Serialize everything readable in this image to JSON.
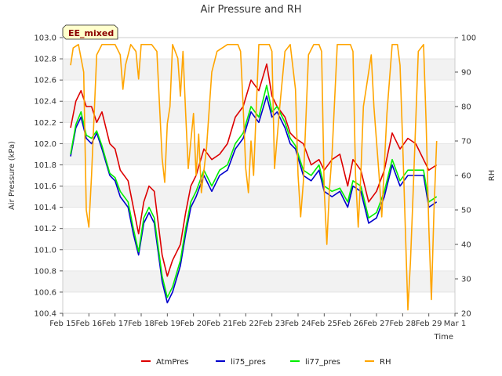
{
  "chart_data": {
    "type": "line",
    "title": "Air Pressure and RH",
    "xlabel": "Time",
    "ylabel": "Air Pressure (kPa)",
    "y2label": "RH",
    "badge": "EE_mixed",
    "x_ticks": [
      "Feb 15",
      "Feb 16",
      "Feb 17",
      "Feb 18",
      "Feb 19",
      "Feb 20",
      "Feb 21",
      "Feb 22",
      "Feb 23",
      "Feb 24",
      "Feb 25",
      "Feb 26",
      "Feb 27",
      "Feb 28",
      "Feb 29",
      "Mar 1"
    ],
    "xlim": [
      15,
      30
    ],
    "ylim": [
      100.4,
      103.0
    ],
    "y_ticks": [
      "100.4",
      "100.6",
      "100.8",
      "101.0",
      "101.2",
      "101.4",
      "101.6",
      "101.8",
      "102.0",
      "102.2",
      "102.4",
      "102.6",
      "102.8",
      "103.0"
    ],
    "y2lim": [
      20,
      100
    ],
    "y2_ticks": [
      "20",
      "30",
      "40",
      "50",
      "60",
      "70",
      "80",
      "90",
      "100"
    ],
    "grid": true,
    "legend": "bottom",
    "series": [
      {
        "name": "AtmPres",
        "color": "#dd0000",
        "axis": "left",
        "x": [
          15.3,
          15.5,
          15.7,
          15.9,
          16.1,
          16.3,
          16.5,
          16.8,
          17.0,
          17.2,
          17.5,
          17.7,
          17.9,
          18.1,
          18.3,
          18.5,
          18.8,
          19.0,
          19.2,
          19.5,
          19.7,
          19.9,
          20.1,
          20.4,
          20.7,
          21.0,
          21.3,
          21.6,
          21.9,
          22.2,
          22.5,
          22.8,
          23.0,
          23.2,
          23.5,
          23.7,
          23.9,
          24.2,
          24.5,
          24.8,
          25.0,
          25.3,
          25.6,
          25.9,
          26.1,
          26.4,
          26.7,
          27.0,
          27.3,
          27.6,
          27.9,
          28.2,
          28.5,
          28.8,
          29.0,
          29.3
        ],
        "y": [
          102.15,
          102.4,
          102.5,
          102.35,
          102.35,
          102.2,
          102.3,
          102.0,
          101.95,
          101.75,
          101.65,
          101.4,
          101.15,
          101.45,
          101.6,
          101.55,
          100.95,
          100.75,
          100.9,
          101.05,
          101.35,
          101.6,
          101.7,
          101.95,
          101.85,
          101.9,
          102.0,
          102.25,
          102.35,
          102.6,
          102.5,
          102.75,
          102.45,
          102.35,
          102.25,
          102.1,
          102.05,
          102.0,
          101.8,
          101.85,
          101.75,
          101.85,
          101.9,
          101.6,
          101.85,
          101.75,
          101.45,
          101.55,
          101.75,
          102.1,
          101.95,
          102.05,
          102.0,
          101.85,
          101.75,
          101.8
        ]
      },
      {
        "name": "li75_pres",
        "color": "#0000cc",
        "axis": "left",
        "x": [
          15.3,
          15.5,
          15.7,
          15.9,
          16.1,
          16.3,
          16.5,
          16.8,
          17.0,
          17.2,
          17.5,
          17.7,
          17.9,
          18.1,
          18.3,
          18.5,
          18.8,
          19.0,
          19.2,
          19.5,
          19.7,
          19.9,
          20.1,
          20.4,
          20.7,
          21.0,
          21.3,
          21.6,
          21.9,
          22.2,
          22.5,
          22.8,
          23.0,
          23.2,
          23.5,
          23.7,
          23.9,
          24.2,
          24.5,
          24.8,
          25.0,
          25.3,
          25.6,
          25.9,
          26.1,
          26.4,
          26.7,
          27.0,
          27.3,
          27.6,
          27.9,
          28.2,
          28.5,
          28.8,
          29.0,
          29.3
        ],
        "y": [
          101.88,
          102.15,
          102.25,
          102.05,
          102.0,
          102.1,
          101.95,
          101.7,
          101.65,
          101.5,
          101.4,
          101.15,
          100.95,
          101.25,
          101.35,
          101.25,
          100.7,
          100.5,
          100.6,
          100.85,
          101.15,
          101.4,
          101.5,
          101.7,
          101.55,
          101.7,
          101.75,
          101.95,
          102.05,
          102.3,
          102.2,
          102.45,
          102.25,
          102.3,
          102.15,
          102.0,
          101.95,
          101.7,
          101.65,
          101.75,
          101.55,
          101.5,
          101.55,
          101.4,
          101.6,
          101.55,
          101.25,
          101.3,
          101.5,
          101.8,
          101.6,
          101.7,
          101.7,
          101.7,
          101.4,
          101.45
        ]
      },
      {
        "name": "li77_pres",
        "color": "#00ee00",
        "axis": "left",
        "x": [
          15.3,
          15.5,
          15.7,
          15.9,
          16.1,
          16.3,
          16.5,
          16.8,
          17.0,
          17.2,
          17.5,
          17.7,
          17.9,
          18.1,
          18.3,
          18.5,
          18.8,
          19.0,
          19.2,
          19.5,
          19.7,
          19.9,
          20.1,
          20.4,
          20.7,
          21.0,
          21.3,
          21.6,
          21.9,
          22.2,
          22.5,
          22.8,
          23.0,
          23.2,
          23.5,
          23.7,
          23.9,
          24.2,
          24.5,
          24.8,
          25.0,
          25.3,
          25.6,
          25.9,
          26.1,
          26.4,
          26.7,
          27.0,
          27.3,
          27.6,
          27.9,
          28.2,
          28.5,
          28.8,
          29.0,
          29.3
        ],
        "y": [
          101.9,
          102.18,
          102.3,
          102.08,
          102.05,
          102.12,
          101.98,
          101.72,
          101.68,
          101.55,
          101.45,
          101.2,
          100.98,
          101.3,
          101.4,
          101.3,
          100.75,
          100.55,
          100.65,
          100.9,
          101.2,
          101.45,
          101.55,
          101.75,
          101.6,
          101.75,
          101.8,
          102.0,
          102.1,
          102.35,
          102.25,
          102.55,
          102.3,
          102.35,
          102.2,
          102.05,
          101.98,
          101.75,
          101.7,
          101.8,
          101.6,
          101.55,
          101.58,
          101.45,
          101.65,
          101.6,
          101.3,
          101.35,
          101.55,
          101.85,
          101.65,
          101.75,
          101.75,
          101.75,
          101.45,
          101.5
        ]
      },
      {
        "name": "RH",
        "color": "#ffa500",
        "axis": "right",
        "x": [
          15.3,
          15.4,
          15.6,
          15.8,
          15.9,
          16.0,
          16.1,
          16.3,
          16.5,
          16.8,
          17.0,
          17.2,
          17.3,
          17.4,
          17.6,
          17.8,
          17.9,
          18.0,
          18.2,
          18.4,
          18.6,
          18.8,
          18.9,
          19.0,
          19.1,
          19.2,
          19.4,
          19.5,
          19.6,
          19.7,
          19.8,
          19.9,
          20.0,
          20.1,
          20.2,
          20.3,
          20.5,
          20.7,
          20.9,
          21.1,
          21.3,
          21.5,
          21.7,
          21.8,
          21.9,
          22.0,
          22.1,
          22.2,
          22.3,
          22.5,
          22.7,
          22.9,
          23.0,
          23.1,
          23.3,
          23.5,
          23.7,
          23.9,
          24.0,
          24.1,
          24.2,
          24.4,
          24.6,
          24.8,
          24.9,
          25.0,
          25.1,
          25.2,
          25.3,
          25.5,
          25.7,
          25.9,
          26.0,
          26.1,
          26.2,
          26.3,
          26.4,
          26.5,
          26.6,
          26.8,
          26.9,
          27.0,
          27.1,
          27.2,
          27.4,
          27.6,
          27.8,
          27.9,
          28.0,
          28.1,
          28.2,
          28.3,
          28.4,
          28.6,
          28.8,
          28.9,
          29.0,
          29.1,
          29.2,
          29.3
        ],
        "y": [
          92,
          97,
          98,
          90,
          50,
          45,
          60,
          95,
          98,
          98,
          98,
          95,
          85,
          92,
          98,
          96,
          88,
          98,
          98,
          98,
          96,
          65,
          58,
          75,
          80,
          98,
          94,
          83,
          96,
          78,
          62,
          70,
          78,
          60,
          72,
          55,
          68,
          90,
          96,
          97,
          98,
          98,
          98,
          96,
          80,
          62,
          55,
          70,
          60,
          98,
          98,
          98,
          96,
          62,
          80,
          96,
          98,
          85,
          60,
          48,
          58,
          95,
          98,
          98,
          96,
          56,
          40,
          56,
          66,
          98,
          98,
          98,
          98,
          96,
          60,
          45,
          60,
          80,
          85,
          95,
          80,
          70,
          60,
          48,
          78,
          98,
          98,
          92,
          70,
          45,
          21,
          35,
          55,
          96,
          98,
          75,
          45,
          24,
          50,
          70
        ]
      }
    ]
  }
}
